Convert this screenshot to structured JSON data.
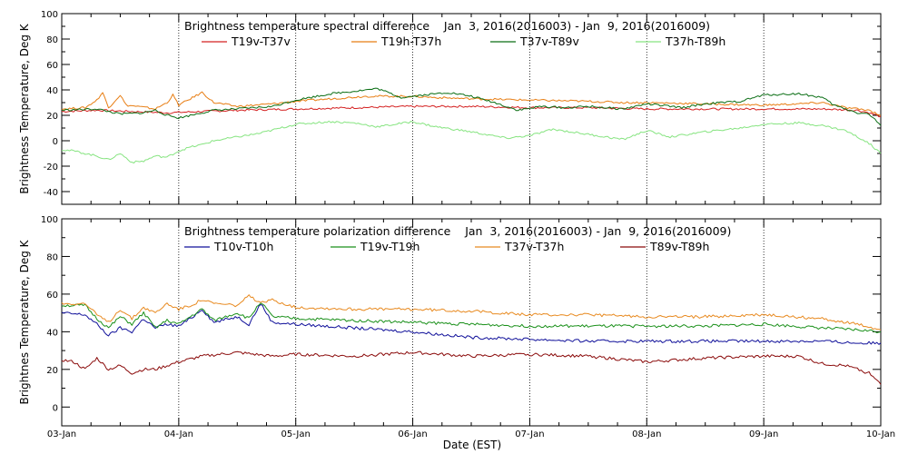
{
  "xlabel": "Date (EST)",
  "x_ticks": [
    "03-Jan",
    "04-Jan",
    "05-Jan",
    "06-Jan",
    "07-Jan",
    "08-Jan",
    "09-Jan",
    "10-Jan"
  ],
  "chart_data": [
    {
      "type": "line",
      "title": "Brightness temperature spectral difference    Jan  3, 2016(2016003) - Jan  9, 2016(2016009)",
      "ylabel": "Brightness Temperature, Deg K",
      "ylim": [
        -50,
        100
      ],
      "yticks": [
        -40,
        -20,
        0,
        20,
        40,
        60,
        80,
        100
      ],
      "x_unit": "days since 03-Jan",
      "xlim": [
        0,
        7
      ],
      "series": [
        {
          "name": "T19v-T37v",
          "color": "#d42020",
          "x": [
            0,
            0.3,
            0.6,
            0.9,
            1.2,
            1.5,
            2.0,
            2.5,
            3.0,
            3.5,
            4.0,
            4.5,
            5.0,
            5.5,
            6.0,
            6.5,
            6.8,
            6.9,
            7.0
          ],
          "values": [
            23,
            24,
            23,
            22,
            23,
            24,
            25,
            26,
            27,
            27,
            26,
            26,
            25,
            25,
            25,
            25,
            24,
            22,
            19
          ]
        },
        {
          "name": "T19h-T37h",
          "color": "#e87e14",
          "x": [
            0,
            0.2,
            0.3,
            0.35,
            0.4,
            0.5,
            0.55,
            0.65,
            0.8,
            0.9,
            0.95,
            1.0,
            1.1,
            1.2,
            1.3,
            1.5,
            1.8,
            2.0,
            2.3,
            2.6,
            3.0,
            3.2,
            3.5,
            4.0,
            4.5,
            4.8,
            5.0,
            5.5,
            6.0,
            6.3,
            6.5,
            6.7,
            6.8,
            6.9,
            7.0
          ],
          "values": [
            25,
            26,
            32,
            38,
            26,
            36,
            28,
            27,
            25,
            30,
            36,
            28,
            33,
            38,
            30,
            27,
            29,
            31,
            33,
            35,
            35,
            34,
            33,
            32,
            31,
            30,
            30,
            29,
            28,
            29,
            30,
            26,
            25,
            24,
            20
          ]
        },
        {
          "name": "T37v-T89v",
          "color": "#0a6e14",
          "x": [
            0,
            0.3,
            0.5,
            0.7,
            0.8,
            0.9,
            1.0,
            1.1,
            1.3,
            1.5,
            1.8,
            2.0,
            2.3,
            2.6,
            2.7,
            2.9,
            3.1,
            3.3,
            3.5,
            3.7,
            3.9,
            4.1,
            4.3,
            4.5,
            4.8,
            5.0,
            5.3,
            5.5,
            5.8,
            6.0,
            6.3,
            6.5,
            6.6,
            6.8,
            6.9,
            7.0
          ],
          "values": [
            24,
            25,
            21,
            22,
            24,
            20,
            18,
            20,
            24,
            25,
            27,
            32,
            37,
            40,
            41,
            34,
            36,
            38,
            35,
            30,
            24,
            27,
            26,
            27,
            25,
            29,
            26,
            29,
            31,
            36,
            37,
            34,
            28,
            22,
            21,
            12
          ]
        },
        {
          "name": "T37h-T89h",
          "color": "#86e480",
          "x": [
            0,
            0.1,
            0.2,
            0.3,
            0.4,
            0.5,
            0.6,
            0.7,
            0.8,
            0.9,
            1.0,
            1.1,
            1.2,
            1.3,
            1.5,
            1.7,
            2.0,
            2.3,
            2.5,
            2.7,
            3.0,
            3.2,
            3.5,
            3.8,
            4.0,
            4.2,
            4.5,
            4.8,
            5.0,
            5.2,
            5.5,
            5.8,
            6.0,
            6.3,
            6.5,
            6.7,
            6.8,
            6.9,
            7.0
          ],
          "values": [
            -7,
            -8,
            -10,
            -12,
            -15,
            -10,
            -17,
            -16,
            -12,
            -13,
            -8,
            -5,
            -3,
            0,
            3,
            6,
            13,
            15,
            14,
            11,
            15,
            11,
            7,
            2,
            4,
            9,
            5,
            1,
            8,
            3,
            7,
            10,
            13,
            14,
            12,
            8,
            3,
            -2,
            -10
          ]
        }
      ]
    },
    {
      "type": "line",
      "title": "Brightness temperature polarization difference    Jan  3, 2016(2016003) - Jan  9, 2016(2016009)",
      "ylabel": "Brightnes Temperature, Deg K",
      "ylim": [
        -10,
        100
      ],
      "yticks": [
        0,
        20,
        40,
        60,
        80,
        100
      ],
      "x_unit": "days since 03-Jan",
      "xlim": [
        0,
        7
      ],
      "series": [
        {
          "name": "T10v-T10h",
          "color": "#10109a",
          "x": [
            0,
            0.2,
            0.3,
            0.4,
            0.5,
            0.6,
            0.7,
            0.8,
            0.9,
            1.0,
            1.1,
            1.2,
            1.3,
            1.5,
            1.6,
            1.7,
            1.8,
            2.0,
            2.5,
            3.0,
            3.5,
            4.0,
            4.5,
            5.0,
            5.5,
            6.0,
            6.5,
            6.8,
            7.0
          ],
          "values": [
            50,
            49,
            44,
            38,
            42,
            40,
            47,
            42,
            44,
            43,
            47,
            52,
            45,
            48,
            44,
            55,
            45,
            44,
            42,
            40,
            37,
            36,
            35,
            35,
            35,
            35,
            35,
            34,
            34
          ]
        },
        {
          "name": "T19v-T19h",
          "color": "#1a901a",
          "x": [
            0,
            0.2,
            0.3,
            0.4,
            0.5,
            0.6,
            0.7,
            0.8,
            0.9,
            1.0,
            1.1,
            1.2,
            1.3,
            1.5,
            1.6,
            1.7,
            1.8,
            2.0,
            2.5,
            3.0,
            3.5,
            4.0,
            4.5,
            5.0,
            5.5,
            6.0,
            6.5,
            6.8,
            7.0
          ],
          "values": [
            54,
            54,
            47,
            42,
            48,
            44,
            50,
            42,
            46,
            44,
            48,
            52,
            46,
            50,
            47,
            56,
            48,
            47,
            46,
            45,
            44,
            43,
            43,
            43,
            43,
            44,
            42,
            41,
            40
          ]
        },
        {
          "name": "T37v-T37h",
          "color": "#e88a20",
          "x": [
            0,
            0.2,
            0.3,
            0.4,
            0.5,
            0.6,
            0.7,
            0.8,
            0.9,
            1.0,
            1.1,
            1.2,
            1.3,
            1.5,
            1.6,
            1.7,
            1.8,
            2.0,
            2.5,
            3.0,
            3.5,
            4.0,
            4.5,
            5.0,
            5.5,
            6.0,
            6.5,
            6.8,
            7.0
          ],
          "values": [
            55,
            55,
            49,
            45,
            52,
            47,
            53,
            50,
            55,
            52,
            54,
            57,
            55,
            54,
            59,
            55,
            57,
            53,
            52,
            52,
            51,
            49,
            49,
            48,
            48,
            49,
            47,
            44,
            41
          ]
        },
        {
          "name": "T89v-T89h",
          "color": "#8a0a0a",
          "x": [
            0,
            0.1,
            0.2,
            0.3,
            0.4,
            0.5,
            0.6,
            0.7,
            0.8,
            1.0,
            1.2,
            1.5,
            1.8,
            2.0,
            2.5,
            3.0,
            3.5,
            4.0,
            4.5,
            5.0,
            5.5,
            6.0,
            6.3,
            6.5,
            6.7,
            6.9,
            7.0
          ],
          "values": [
            25,
            24,
            20,
            26,
            20,
            22,
            18,
            20,
            20,
            24,
            27,
            29,
            27,
            28,
            27,
            29,
            27,
            28,
            27,
            24,
            26,
            27,
            27,
            23,
            22,
            18,
            12
          ]
        }
      ]
    }
  ]
}
